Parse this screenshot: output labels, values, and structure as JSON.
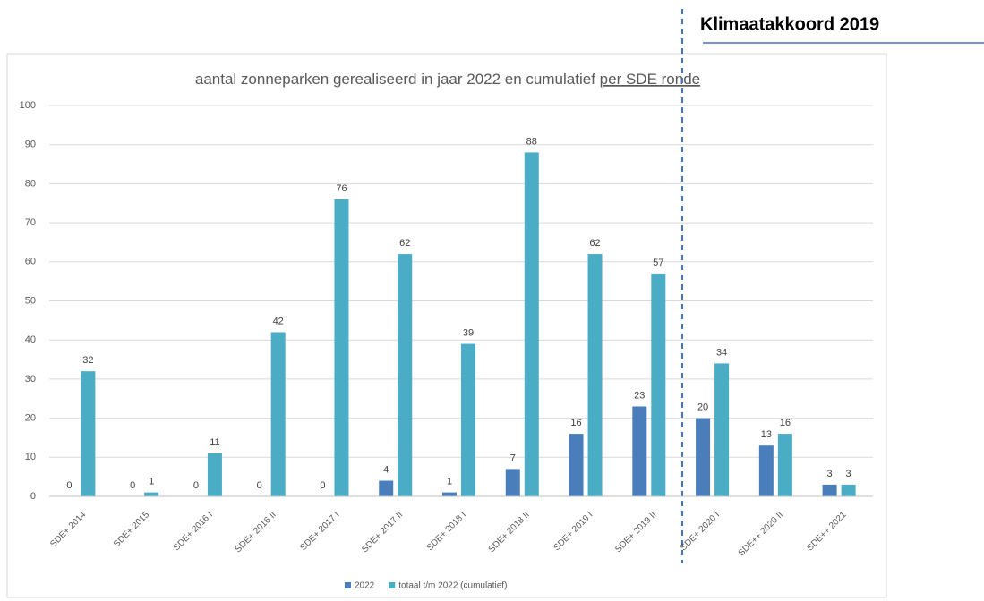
{
  "chart_data": {
    "type": "bar",
    "title": "aantal zonneparken gerealiseerd in jaar 2022 en cumulatief",
    "title_underlined": "per SDE ronde",
    "annotation": "Klimaatakkoord 2019",
    "categories": [
      "SDE+ 2014",
      "SDE+ 2015",
      "SDE+ 2016 I",
      "SDE+ 2016 II",
      "SDE+ 2017 I",
      "SDE+ 2017 II",
      "SDE+ 2018 I",
      "SDE+ 2018 II",
      "SDE+ 2019 I",
      "SDE+ 2019 II",
      "SDE+ 2020 I",
      "SDE++ 2020 II",
      "SDE++ 2021"
    ],
    "series": [
      {
        "name": "2022",
        "color": "#4a7ebb",
        "values": [
          0,
          0,
          0,
          0,
          0,
          4,
          1,
          7,
          16,
          23,
          20,
          13,
          3
        ]
      },
      {
        "name": "totaal t/m 2022 (cumulatief)",
        "color": "#4bacc6",
        "values": [
          32,
          1,
          11,
          42,
          76,
          62,
          39,
          88,
          62,
          57,
          34,
          16,
          3
        ]
      }
    ],
    "ylim": [
      0,
      100
    ],
    "yticks": [
      0,
      10,
      20,
      30,
      40,
      50,
      60,
      70,
      80,
      90,
      100
    ],
    "grid": true,
    "legend": "bottom"
  }
}
